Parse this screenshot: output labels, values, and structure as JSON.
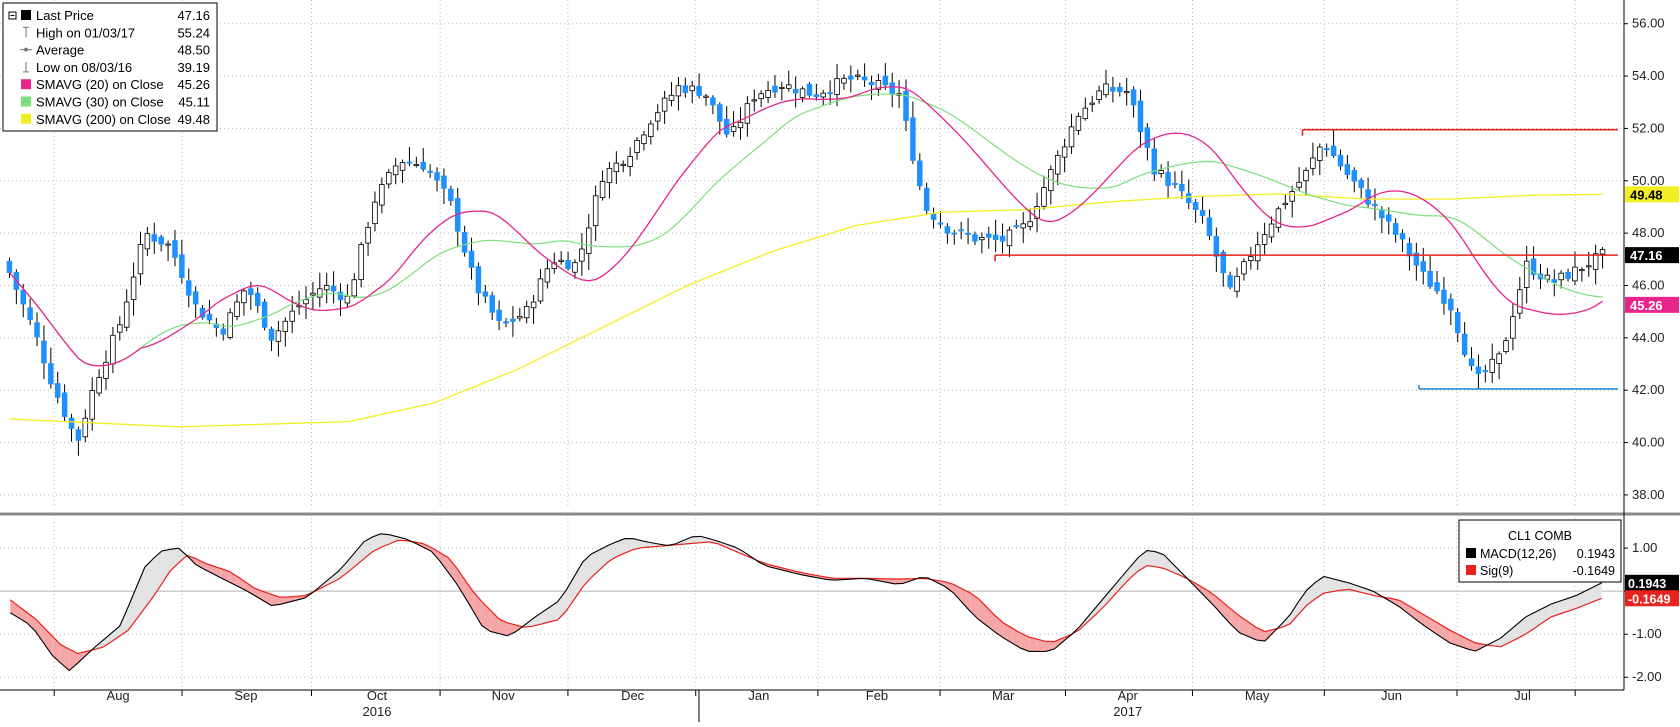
{
  "colors": {
    "up": "#ffffff",
    "down": "#1e90ff",
    "wick": "#000000",
    "sma20": "#e8258c",
    "sma30": "#7be07b",
    "sma200": "#f2ef20",
    "macd": "#000000",
    "signal": "#e8221c",
    "fill_pos": "#e3e3e3",
    "fill_neg": "#f6a6a6",
    "resistance": "#e8221c",
    "support": "#2c8fd6",
    "badge_last": "#000000",
    "badge_sma200": "#f2ef20",
    "badge_sma20": "#e8258c"
  },
  "legend": {
    "items": [
      {
        "label": "Last Price",
        "value": "47.16",
        "icon": "filled-square-icon"
      },
      {
        "label": "High on 01/03/17",
        "value": "55.24",
        "icon": "high-marker-icon"
      },
      {
        "label": "Average",
        "value": "48.50",
        "icon": "average-line-icon"
      },
      {
        "label": "Low on 08/03/16",
        "value": "39.19",
        "icon": "low-marker-icon"
      },
      {
        "label": "SMAVG (20) on Close",
        "value": "45.26",
        "icon": "sma20-swatch-icon"
      },
      {
        "label": "SMAVG (30) on Close",
        "value": "45.11",
        "icon": "sma30-swatch-icon"
      },
      {
        "label": "SMAVG (200) on Close",
        "value": "49.48",
        "icon": "sma200-swatch-icon"
      }
    ]
  },
  "macd_legend": {
    "title": "CL1 COMB",
    "items": [
      {
        "label": "MACD(12,26)",
        "value": "0.1943"
      },
      {
        "label": "Sig(9)",
        "value": "-0.1649"
      }
    ]
  },
  "price_badges": [
    {
      "text": "49.48",
      "value": 49.48,
      "color": "sma200"
    },
    {
      "text": "47.16",
      "value": 47.16,
      "color": "badge_last"
    },
    {
      "text": "45.26",
      "value": 45.26,
      "color": "sma20"
    }
  ],
  "macd_badges": [
    {
      "text": "0.1943",
      "value": 0.1943
    },
    {
      "text": "-0.1649",
      "value": -0.1649
    }
  ],
  "chart_data": [
    {
      "type": "candlestick",
      "ylim": [
        37.5,
        56.6
      ],
      "y_ticks": [
        38,
        40,
        42,
        44,
        46,
        48,
        50,
        52,
        54,
        56
      ],
      "y_tick_labels": [
        "38.00",
        "40.00",
        "42.00",
        "44.00",
        "46.00",
        "48.00",
        "50.00",
        "52.00",
        "54.00",
        "56.00"
      ],
      "grid": true,
      "legend_position": "top-left",
      "x_labels": [
        "Aug",
        "Sep",
        "Oct",
        "Nov",
        "Dec",
        "Jan",
        "Feb",
        "Mar",
        "Apr",
        "May",
        "Jun",
        "Jul"
      ],
      "x_label_pos": [
        0.073,
        0.152,
        0.233,
        0.311,
        0.391,
        0.469,
        0.542,
        0.62,
        0.697,
        0.777,
        0.86,
        0.941
      ],
      "year_labels": [
        {
          "text": "2016",
          "pos": 0.233
        },
        {
          "text": "2017",
          "pos": 0.697
        }
      ],
      "year_separator": 0.432,
      "n_bars": 232,
      "close_anchors": [
        [
          0,
          46.5
        ],
        [
          6,
          44.2
        ],
        [
          10,
          42.3
        ],
        [
          16,
          40.0
        ],
        [
          20,
          42.2
        ],
        [
          26,
          44.5
        ],
        [
          32,
          48.0
        ],
        [
          38,
          47.5
        ],
        [
          44,
          45.2
        ],
        [
          50,
          44.2
        ],
        [
          56,
          46.0
        ],
        [
          62,
          44.0
        ],
        [
          68,
          45.2
        ],
        [
          74,
          46.0
        ],
        [
          80,
          45.5
        ],
        [
          86,
          49.2
        ],
        [
          92,
          50.8
        ],
        [
          98,
          50.6
        ],
        [
          104,
          49.2
        ],
        [
          110,
          46.0
        ],
        [
          116,
          44.4
        ],
        [
          122,
          45.0
        ],
        [
          128,
          47.0
        ],
        [
          134,
          46.8
        ],
        [
          140,
          50.2
        ],
        [
          146,
          51.0
        ],
        [
          152,
          52.5
        ],
        [
          158,
          53.6
        ],
        [
          164,
          53.4
        ],
        [
          170,
          51.6
        ],
        [
          176,
          53.3
        ],
        [
          182,
          53.7
        ],
        [
          190,
          53.3
        ],
        [
          198,
          53.9
        ],
        [
          204,
          53.7
        ],
        [
          210,
          53.3
        ],
        [
          216,
          49.0
        ],
        [
          222,
          48.1
        ],
        [
          228,
          47.8
        ],
        [
          234,
          47.7
        ],
        [
          240,
          48.3
        ],
        [
          246,
          50.4
        ],
        [
          252,
          52.5
        ],
        [
          258,
          53.5
        ],
        [
          264,
          53.4
        ],
        [
          270,
          50.5
        ],
        [
          276,
          49.6
        ],
        [
          282,
          48.4
        ],
        [
          288,
          45.7
        ],
        [
          294,
          47.5
        ],
        [
          300,
          49.0
        ],
        [
          306,
          50.3
        ],
        [
          310,
          51.5
        ],
        [
          316,
          50.2
        ],
        [
          322,
          49.0
        ],
        [
          328,
          47.8
        ],
        [
          334,
          46.3
        ],
        [
          340,
          45.3
        ],
        [
          346,
          42.3
        ],
        [
          352,
          43.3
        ],
        [
          358,
          46.8
        ],
        [
          364,
          46.1
        ],
        [
          370,
          46.6
        ],
        [
          376,
          47.16
        ]
      ],
      "high_marker": {
        "label": "High on 01/03/17",
        "value": 55.24
      },
      "low_marker": {
        "label": "Low on 08/03/16",
        "value": 39.19
      },
      "average": 48.5,
      "horizontal_lines": [
        {
          "name": "resistance-upper",
          "y": 51.95,
          "x_from": 0.805,
          "x_to": 1.0,
          "color": "resistance"
        },
        {
          "name": "resistance-lower",
          "y": 47.16,
          "x_from": 0.615,
          "x_to": 1.0,
          "color": "resistance"
        },
        {
          "name": "support",
          "y": 42.05,
          "x_from": 0.877,
          "x_to": 1.0,
          "color": "support"
        }
      ],
      "series": [
        {
          "name": "Last Price",
          "last": 47.16
        },
        {
          "name": "SMAVG (20) on Close",
          "last": 45.26
        },
        {
          "name": "SMAVG (30) on Close",
          "last": 45.11
        },
        {
          "name": "SMAVG (200) on Close",
          "last": 49.48
        }
      ],
      "sma200_anchors": [
        [
          0,
          40.9
        ],
        [
          40,
          40.6
        ],
        [
          80,
          40.8
        ],
        [
          100,
          41.5
        ],
        [
          120,
          42.8
        ],
        [
          140,
          44.4
        ],
        [
          160,
          46.0
        ],
        [
          180,
          47.3
        ],
        [
          200,
          48.3
        ],
        [
          220,
          48.8
        ],
        [
          240,
          48.9
        ],
        [
          260,
          49.2
        ],
        [
          280,
          49.4
        ],
        [
          300,
          49.5
        ],
        [
          320,
          49.3
        ],
        [
          340,
          49.3
        ],
        [
          360,
          49.45
        ],
        [
          376,
          49.48
        ]
      ]
    },
    {
      "type": "line",
      "title": "CL1 COMB",
      "ylim": [
        -2.25,
        1.7
      ],
      "y_ticks": [
        -2,
        -1,
        0,
        1
      ],
      "y_tick_labels": [
        "-2.00",
        "-1.00",
        "",
        "1.00"
      ],
      "grid": true,
      "legend_position": "top-right",
      "series": [
        {
          "name": "MACD(12,26)",
          "last": 0.1943,
          "anchors": [
            [
              0,
              -0.5
            ],
            [
              5,
              -0.8
            ],
            [
              10,
              -1.5
            ],
            [
              14,
              -1.85
            ],
            [
              20,
              -1.3
            ],
            [
              26,
              -0.8
            ],
            [
              32,
              0.6
            ],
            [
              36,
              0.95
            ],
            [
              40,
              1.0
            ],
            [
              44,
              0.6
            ],
            [
              50,
              0.3
            ],
            [
              56,
              0.0
            ],
            [
              62,
              -0.35
            ],
            [
              70,
              -0.15
            ],
            [
              78,
              0.5
            ],
            [
              84,
              1.2
            ],
            [
              88,
              1.35
            ],
            [
              94,
              1.2
            ],
            [
              100,
              0.9
            ],
            [
              106,
              0.1
            ],
            [
              112,
              -0.9
            ],
            [
              118,
              -1.05
            ],
            [
              124,
              -0.6
            ],
            [
              130,
              -0.2
            ],
            [
              136,
              0.8
            ],
            [
              142,
              1.1
            ],
            [
              146,
              1.25
            ],
            [
              150,
              1.15
            ],
            [
              156,
              1.05
            ],
            [
              162,
              1.3
            ],
            [
              166,
              1.2
            ],
            [
              172,
              1.0
            ],
            [
              178,
              0.6
            ],
            [
              186,
              0.4
            ],
            [
              194,
              0.25
            ],
            [
              202,
              0.3
            ],
            [
              210,
              0.15
            ],
            [
              216,
              0.35
            ],
            [
              222,
              0.05
            ],
            [
              228,
              -0.6
            ],
            [
              234,
              -1.05
            ],
            [
              240,
              -1.4
            ],
            [
              246,
              -1.4
            ],
            [
              252,
              -0.9
            ],
            [
              258,
              -0.2
            ],
            [
              264,
              0.5
            ],
            [
              268,
              0.95
            ],
            [
              272,
              0.9
            ],
            [
              278,
              0.3
            ],
            [
              284,
              -0.3
            ],
            [
              290,
              -0.95
            ],
            [
              296,
              -1.2
            ],
            [
              302,
              -0.6
            ],
            [
              306,
              0.0
            ],
            [
              310,
              0.35
            ],
            [
              316,
              0.2
            ],
            [
              322,
              0.0
            ],
            [
              328,
              -0.35
            ],
            [
              334,
              -0.8
            ],
            [
              340,
              -1.2
            ],
            [
              346,
              -1.4
            ],
            [
              352,
              -1.1
            ],
            [
              358,
              -0.6
            ],
            [
              364,
              -0.3
            ],
            [
              370,
              -0.1
            ],
            [
              376,
              0.1943
            ]
          ]
        },
        {
          "name": "Sig(9)",
          "last": -0.1649,
          "anchors": [
            [
              0,
              -0.2
            ],
            [
              6,
              -0.65
            ],
            [
              12,
              -1.25
            ],
            [
              16,
              -1.45
            ],
            [
              22,
              -1.3
            ],
            [
              28,
              -0.9
            ],
            [
              34,
              -0.1
            ],
            [
              38,
              0.5
            ],
            [
              42,
              0.85
            ],
            [
              46,
              0.65
            ],
            [
              52,
              0.45
            ],
            [
              58,
              0.05
            ],
            [
              64,
              -0.15
            ],
            [
              70,
              -0.1
            ],
            [
              78,
              0.3
            ],
            [
              86,
              0.95
            ],
            [
              92,
              1.2
            ],
            [
              98,
              1.1
            ],
            [
              104,
              0.75
            ],
            [
              110,
              -0.1
            ],
            [
              116,
              -0.7
            ],
            [
              122,
              -0.85
            ],
            [
              130,
              -0.65
            ],
            [
              136,
              0.2
            ],
            [
              142,
              0.75
            ],
            [
              148,
              1.0
            ],
            [
              154,
              1.05
            ],
            [
              160,
              1.1
            ],
            [
              166,
              1.15
            ],
            [
              172,
              0.9
            ],
            [
              178,
              0.65
            ],
            [
              186,
              0.45
            ],
            [
              194,
              0.3
            ],
            [
              202,
              0.3
            ],
            [
              210,
              0.28
            ],
            [
              216,
              0.3
            ],
            [
              222,
              0.2
            ],
            [
              228,
              -0.1
            ],
            [
              234,
              -0.7
            ],
            [
              240,
              -1.05
            ],
            [
              246,
              -1.2
            ],
            [
              252,
              -0.95
            ],
            [
              258,
              -0.4
            ],
            [
              264,
              0.25
            ],
            [
              268,
              0.6
            ],
            [
              272,
              0.55
            ],
            [
              278,
              0.3
            ],
            [
              284,
              -0.05
            ],
            [
              290,
              -0.55
            ],
            [
              296,
              -0.95
            ],
            [
              302,
              -0.8
            ],
            [
              306,
              -0.35
            ],
            [
              310,
              -0.05
            ],
            [
              316,
              0.05
            ],
            [
              322,
              -0.1
            ],
            [
              328,
              -0.2
            ],
            [
              334,
              -0.55
            ],
            [
              340,
              -0.9
            ],
            [
              346,
              -1.2
            ],
            [
              352,
              -1.3
            ],
            [
              358,
              -1.0
            ],
            [
              364,
              -0.6
            ],
            [
              370,
              -0.4
            ],
            [
              376,
              -0.1649
            ]
          ]
        }
      ]
    }
  ]
}
